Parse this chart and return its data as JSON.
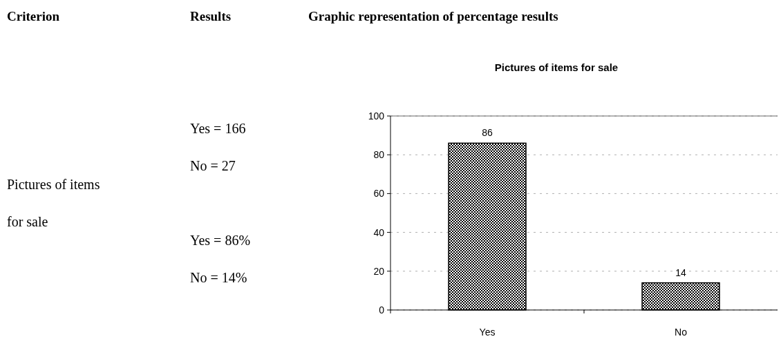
{
  "chart_data": {
    "type": "bar",
    "title": "Pictures of items for sale",
    "categories": [
      "Yes",
      "No"
    ],
    "values": [
      86,
      14
    ],
    "color": "#000000",
    "ylim": [
      0,
      100
    ],
    "yticks": [
      0,
      20,
      40,
      60,
      80,
      100
    ],
    "grid": "y",
    "data_labels": true,
    "annotations": [
      "Criterion",
      "Results",
      "Graphic representation of percentage results",
      "Pictures of items for sale",
      "Yes = 166",
      "No = 27",
      "Yes = 86%",
      "No = 14%"
    ]
  }
}
